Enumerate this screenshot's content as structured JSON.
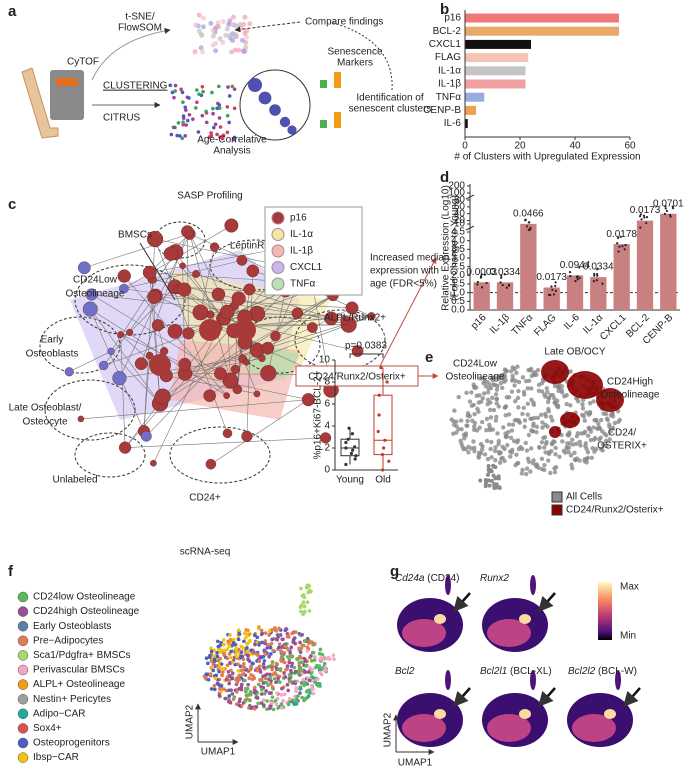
{
  "panel_labels": [
    "a",
    "b",
    "c",
    "d",
    "e",
    "f",
    "g"
  ],
  "panel_a": {
    "instrument": "CyTOF",
    "clustering": "CLUSTERING",
    "citrus": "CITRUS",
    "tsne": [
      "t-SNE/",
      "FlowSOM"
    ],
    "compare": "Compare findings",
    "markers": [
      "Senescence",
      "Markers"
    ],
    "identification": [
      "Identification of",
      "senescent clusters"
    ],
    "age": [
      "Age-Correlative",
      "Analysis"
    ]
  },
  "panel_b": {
    "type": "bar",
    "categories": [
      "p16",
      "BCL-2",
      "CXCL1",
      "FLAG",
      "IL-1α",
      "IL-1β",
      "TNFα",
      "CENP-B",
      "IL-6"
    ],
    "values": [
      56,
      56,
      24,
      23,
      22,
      22,
      7,
      4,
      1
    ],
    "colors": [
      "#f07878",
      "#e8a868",
      "#111111",
      "#f4c4b4",
      "#c4c4c4",
      "#f0a0a0",
      "#98ace0",
      "#f0a050",
      "#111111"
    ],
    "xlim": [
      0,
      60
    ],
    "xticks": [
      0,
      20,
      40,
      60
    ],
    "xlabel": "# of Clusters with Upregulated Expression"
  },
  "panel_c": {
    "title": "SASP Profiling",
    "populations": [
      "BMSCs",
      "LeptinR+",
      [
        "CD24Low",
        "Osteolineage"
      ],
      "ALPL/Runx2+",
      [
        "Early",
        "Osteoblasts"
      ],
      [
        "Late Osteoblast/",
        "Osteocyte"
      ],
      "Unlabeled",
      "CD24+"
    ],
    "highlight": "CD24/Runx2/Osterix+",
    "legend": [
      {
        "name": "p16",
        "color": "#a83a3a"
      },
      {
        "name": "IL-1α",
        "color": "#f5e6a0"
      },
      {
        "name": "IL-1β",
        "color": "#f4b8b0"
      },
      {
        "name": "CXCL1",
        "color": "#c8b8f0"
      },
      {
        "name": "TNFα",
        "color": "#b8e0b0"
      }
    ],
    "legend_note": [
      "Increased median",
      "expression with",
      "age (FDR<5%)"
    ],
    "boxplot": {
      "type": "box",
      "categories": [
        "Young",
        "Old"
      ],
      "ylabel": "%p16+Ki67-BCL-2+",
      "annotation": "p=0.0383",
      "ylim": [
        0,
        10
      ],
      "yticks": [
        0,
        2,
        4,
        6,
        8,
        10
      ],
      "min": [
        0.5,
        0
      ],
      "q1": [
        1.3,
        1.4
      ],
      "median": [
        2.0,
        2.7
      ],
      "q3": [
        2.8,
        6.8
      ],
      "max": [
        3.8,
        9.3
      ],
      "points": [
        [
          0.5,
          1.0,
          1.3,
          1.5,
          1.8,
          2.0,
          2.1,
          2.5,
          2.8,
          3.3,
          3.8
        ],
        [
          0,
          0.8,
          1.4,
          2.0,
          2.7,
          3.5,
          5.0,
          6.8,
          8.0,
          9.3
        ]
      ]
    }
  },
  "panel_d": {
    "type": "bar",
    "categories": [
      "p16",
      "IL-1β",
      "TNFα",
      "FLAG",
      "IL-6",
      "IL-1α",
      "CXCL1",
      "BCL-2",
      "CENP-B"
    ],
    "values": [
      1.6,
      1.6,
      10.5,
      1.3,
      2.0,
      1.9,
      3.8,
      20,
      40
    ],
    "color": "#c98080",
    "value_labels": [
      "0.0003",
      "0.0334",
      "0.0466",
      "0.0173",
      "0.0944",
      "0.0334",
      "0.0178",
      "0.0173",
      "0.0701"
    ],
    "ylabel": [
      "Relative Expression (Log10)",
      "(Fold Change to Young)"
    ],
    "reference": 1,
    "ysegments": [
      {
        "lim": [
          0,
          4.5
        ],
        "ticks": [
          {
            "value": 0,
            "label": "0.0"
          },
          0.5,
          {
            "value": 1,
            "label": "1.0"
          },
          1.5,
          {
            "value": 2,
            "label": "2.0"
          },
          2.5,
          {
            "value": 3,
            "label": "3.0"
          },
          3.5,
          {
            "value": 4,
            "label": "4.0"
          },
          4.5
        ]
      },
      {
        "lim": [
          10,
          80
        ],
        "ticks": [
          10,
          20,
          40,
          60,
          80
        ]
      },
      {
        "lim": [
          100,
          200
        ],
        "ticks": [
          100,
          200
        ]
      }
    ]
  },
  "panel_e": {
    "labels": [
      [
        "CD24Low",
        "Osteolineage"
      ],
      "Late OB/OCY",
      [
        "CD24High",
        "Osteolineage"
      ],
      [
        "CD24/",
        "OSTERIX+"
      ]
    ],
    "legend": [
      {
        "name": "All Cells",
        "color": "#8a8a8a"
      },
      {
        "name": "CD24/Runx2/Osterix+",
        "color": "#8b0000"
      }
    ]
  },
  "panel_f": {
    "title": "scRNA-seq",
    "legend": [
      {
        "name": "CD24low Osteolineage",
        "color": "#5cb85c"
      },
      {
        "name": "CD24high Osteolineage",
        "color": "#9b4f96"
      },
      {
        "name": "Early Osteoblasts",
        "color": "#5b7fa6"
      },
      {
        "name": "Pre−Adipocytes",
        "color": "#e07b53"
      },
      {
        "name": "Sca1/Pdgfra+ BMSCs",
        "color": "#a6d96a"
      },
      {
        "name": "Perivascular BMSCs",
        "color": "#f4a6c6"
      },
      {
        "name": "ALPL+ Osteolineage",
        "color": "#f39c12"
      },
      {
        "name": "Nestin+ Pericytes",
        "color": "#9e9e9e"
      },
      {
        "name": "Adipo−CAR",
        "color": "#1fa9a0"
      },
      {
        "name": "Sox4+",
        "color": "#d9534f"
      },
      {
        "name": "Osteoprogenitors",
        "color": "#4a5fc1"
      },
      {
        "name": "Ibsp−CAR",
        "color": "#f1c40f"
      }
    ],
    "xlabel": "UMAP1",
    "ylabel": "UMAP2"
  },
  "panel_g": {
    "genes": [
      {
        "gene": "Cd24a",
        "protein": "(CD24)"
      },
      {
        "gene": "Runx2"
      },
      {
        "gene": "Bcl2"
      },
      {
        "gene": "Bcl2l1",
        "protein": "(BCL-XL)"
      },
      {
        "gene": "Bcl2l2",
        "protein": "(BCL-W)"
      }
    ],
    "scale": [
      "Max",
      "Min"
    ],
    "xlabel": "UMAP1",
    "ylabel": "UMAP2"
  }
}
